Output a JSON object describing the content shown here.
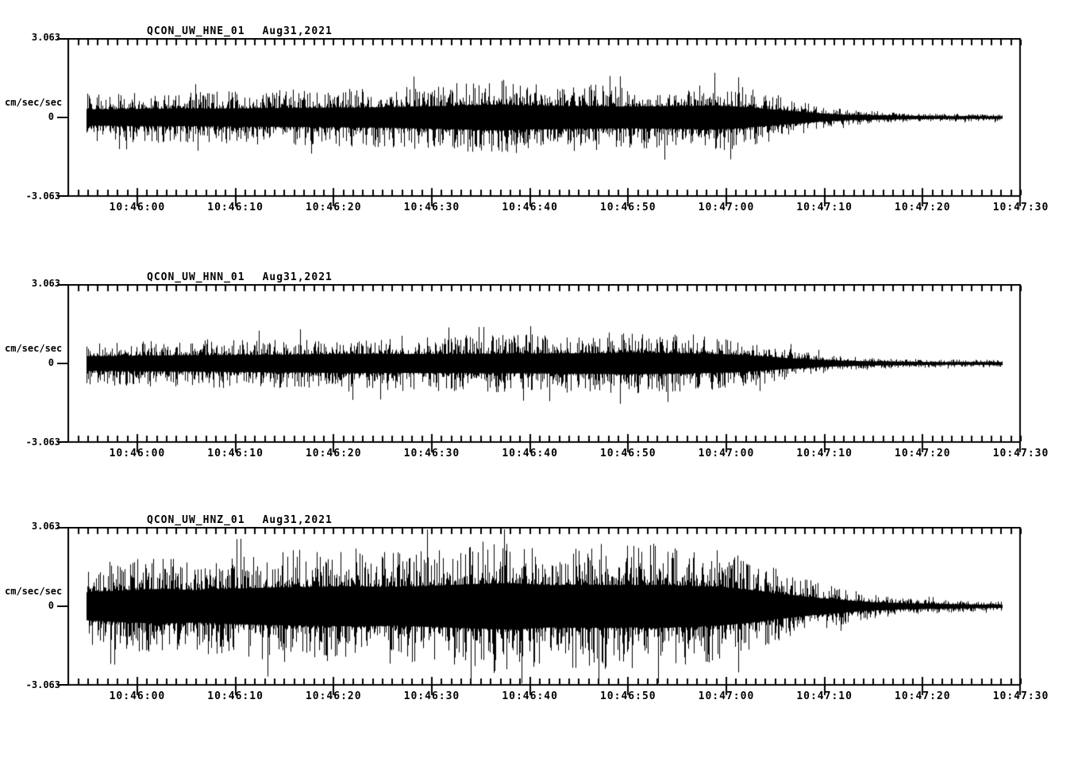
{
  "page": {
    "background_color": "#ffffff",
    "trace_color": "#000000"
  },
  "axis": {
    "y_max_label": "3.063",
    "y_zero_label": "0",
    "y_min_label": "-3.063",
    "y_units": "cm/sec/sec"
  },
  "panels": [
    {
      "station": "QCON_UW_HNE_01",
      "date": "Aug31,2021"
    },
    {
      "station": "QCON_UW_HNN_01",
      "date": "Aug31,2021"
    },
    {
      "station": "QCON_UW_HNZ_01",
      "date": "Aug31,2021"
    }
  ],
  "chart_data": [
    {
      "type": "line",
      "subtype": "seismogram",
      "title": "QCON_UW_HNE_01   Aug31,2021",
      "station": "QCON_UW_HNE_01",
      "channel": "HNE",
      "date": "Aug31,2021",
      "ylabel": "cm/sec/sec",
      "ylim": [
        -3.063,
        3.063
      ],
      "y_tick_values": [
        3.063,
        0,
        -3.063
      ],
      "grid": false,
      "legend": "none",
      "x_tick_labels": [
        "10:46:00",
        "10:46:10",
        "10:46:20",
        "10:46:30",
        "10:46:40",
        "10:46:50",
        "10:47:00",
        "10:47:10",
        "10:47:20",
        "10:47:30"
      ],
      "x_major_interval_s": 10,
      "x_minor_interval_s": 1,
      "x_start_s": -7.11,
      "x_end_s": 90,
      "trace_start_s": -5.25,
      "trace_end_s": 88.1,
      "envelope_units": "cm/sec/sec peak amplitude vs seconds relative to 10:46:00",
      "envelope": [
        [
          -5.25,
          0.92
        ],
        [
          1,
          0.98
        ],
        [
          8,
          1.01
        ],
        [
          15,
          1.07
        ],
        [
          23,
          1.13
        ],
        [
          31,
          1.29
        ],
        [
          37,
          1.47
        ],
        [
          40,
          1.35
        ],
        [
          45,
          1.29
        ],
        [
          50,
          1.23
        ],
        [
          55,
          1.29
        ],
        [
          59,
          1.35
        ],
        [
          62,
          1.16
        ],
        [
          64,
          0.98
        ],
        [
          66,
          0.8
        ],
        [
          68,
          0.61
        ],
        [
          70,
          0.43
        ],
        [
          72,
          0.31
        ],
        [
          75,
          0.25
        ],
        [
          79,
          0.18
        ],
        [
          83,
          0.15
        ],
        [
          88.1,
          0.15
        ]
      ]
    },
    {
      "type": "line",
      "subtype": "seismogram",
      "title": "QCON_UW_HNN_01   Aug31,2021",
      "station": "QCON_UW_HNN_01",
      "channel": "HNN",
      "date": "Aug31,2021",
      "ylabel": "cm/sec/sec",
      "ylim": [
        -3.063,
        3.063
      ],
      "y_tick_values": [
        3.063,
        0,
        -3.063
      ],
      "grid": false,
      "legend": "none",
      "x_tick_labels": [
        "10:46:00",
        "10:46:10",
        "10:46:20",
        "10:46:30",
        "10:46:40",
        "10:46:50",
        "10:47:00",
        "10:47:10",
        "10:47:20",
        "10:47:30"
      ],
      "x_major_interval_s": 10,
      "x_minor_interval_s": 1,
      "x_start_s": -7.11,
      "x_end_s": 90,
      "trace_start_s": -5.25,
      "trace_end_s": 88.1,
      "envelope_units": "cm/sec/sec peak amplitude vs seconds relative to 10:46:00",
      "envelope": [
        [
          -5.25,
          0.83
        ],
        [
          1,
          0.89
        ],
        [
          8,
          0.95
        ],
        [
          15,
          1.01
        ],
        [
          22,
          1.1
        ],
        [
          28,
          1.07
        ],
        [
          35,
          1.1
        ],
        [
          41,
          1.13
        ],
        [
          46,
          1.16
        ],
        [
          50,
          1.23
        ],
        [
          54,
          1.16
        ],
        [
          58,
          1.1
        ],
        [
          61,
          1.01
        ],
        [
          63,
          0.86
        ],
        [
          65,
          0.7
        ],
        [
          67,
          0.55
        ],
        [
          69,
          0.43
        ],
        [
          71,
          0.34
        ],
        [
          74,
          0.25
        ],
        [
          78,
          0.18
        ],
        [
          83,
          0.15
        ],
        [
          88.1,
          0.15
        ]
      ]
    },
    {
      "type": "line",
      "subtype": "seismogram",
      "title": "QCON_UW_HNZ_01   Aug31,2021",
      "station": "QCON_UW_HNZ_01",
      "channel": "HNZ",
      "date": "Aug31,2021",
      "ylabel": "cm/sec/sec",
      "ylim": [
        -3.063,
        3.063
      ],
      "y_tick_values": [
        3.063,
        0,
        -3.063
      ],
      "grid": false,
      "legend": "none",
      "x_tick_labels": [
        "10:46:00",
        "10:46:10",
        "10:46:20",
        "10:46:30",
        "10:46:40",
        "10:46:50",
        "10:47:00",
        "10:47:10",
        "10:47:20",
        "10:47:30"
      ],
      "x_major_interval_s": 10,
      "x_minor_interval_s": 1,
      "x_start_s": -7.11,
      "x_end_s": 90,
      "trace_start_s": -5.25,
      "trace_end_s": 88.1,
      "envelope_units": "cm/sec/sec peak amplitude vs seconds relative to 10:46:00",
      "envelope": [
        [
          -5.25,
          1.59
        ],
        [
          -2,
          1.78
        ],
        [
          2,
          1.96
        ],
        [
          6,
          1.84
        ],
        [
          10,
          2.02
        ],
        [
          14,
          2.14
        ],
        [
          18,
          2.21
        ],
        [
          22,
          2.27
        ],
        [
          26,
          2.21
        ],
        [
          30,
          2.33
        ],
        [
          34,
          2.51
        ],
        [
          38,
          2.63
        ],
        [
          42,
          2.39
        ],
        [
          46,
          2.45
        ],
        [
          50,
          2.39
        ],
        [
          53,
          2.45
        ],
        [
          56,
          2.33
        ],
        [
          59,
          2.21
        ],
        [
          61,
          2.02
        ],
        [
          63,
          1.78
        ],
        [
          65,
          1.47
        ],
        [
          67,
          1.23
        ],
        [
          69,
          0.98
        ],
        [
          71,
          0.8
        ],
        [
          73,
          0.61
        ],
        [
          75,
          0.46
        ],
        [
          78,
          0.34
        ],
        [
          81,
          0.28
        ],
        [
          85,
          0.21
        ],
        [
          88.1,
          0.18
        ]
      ]
    }
  ]
}
